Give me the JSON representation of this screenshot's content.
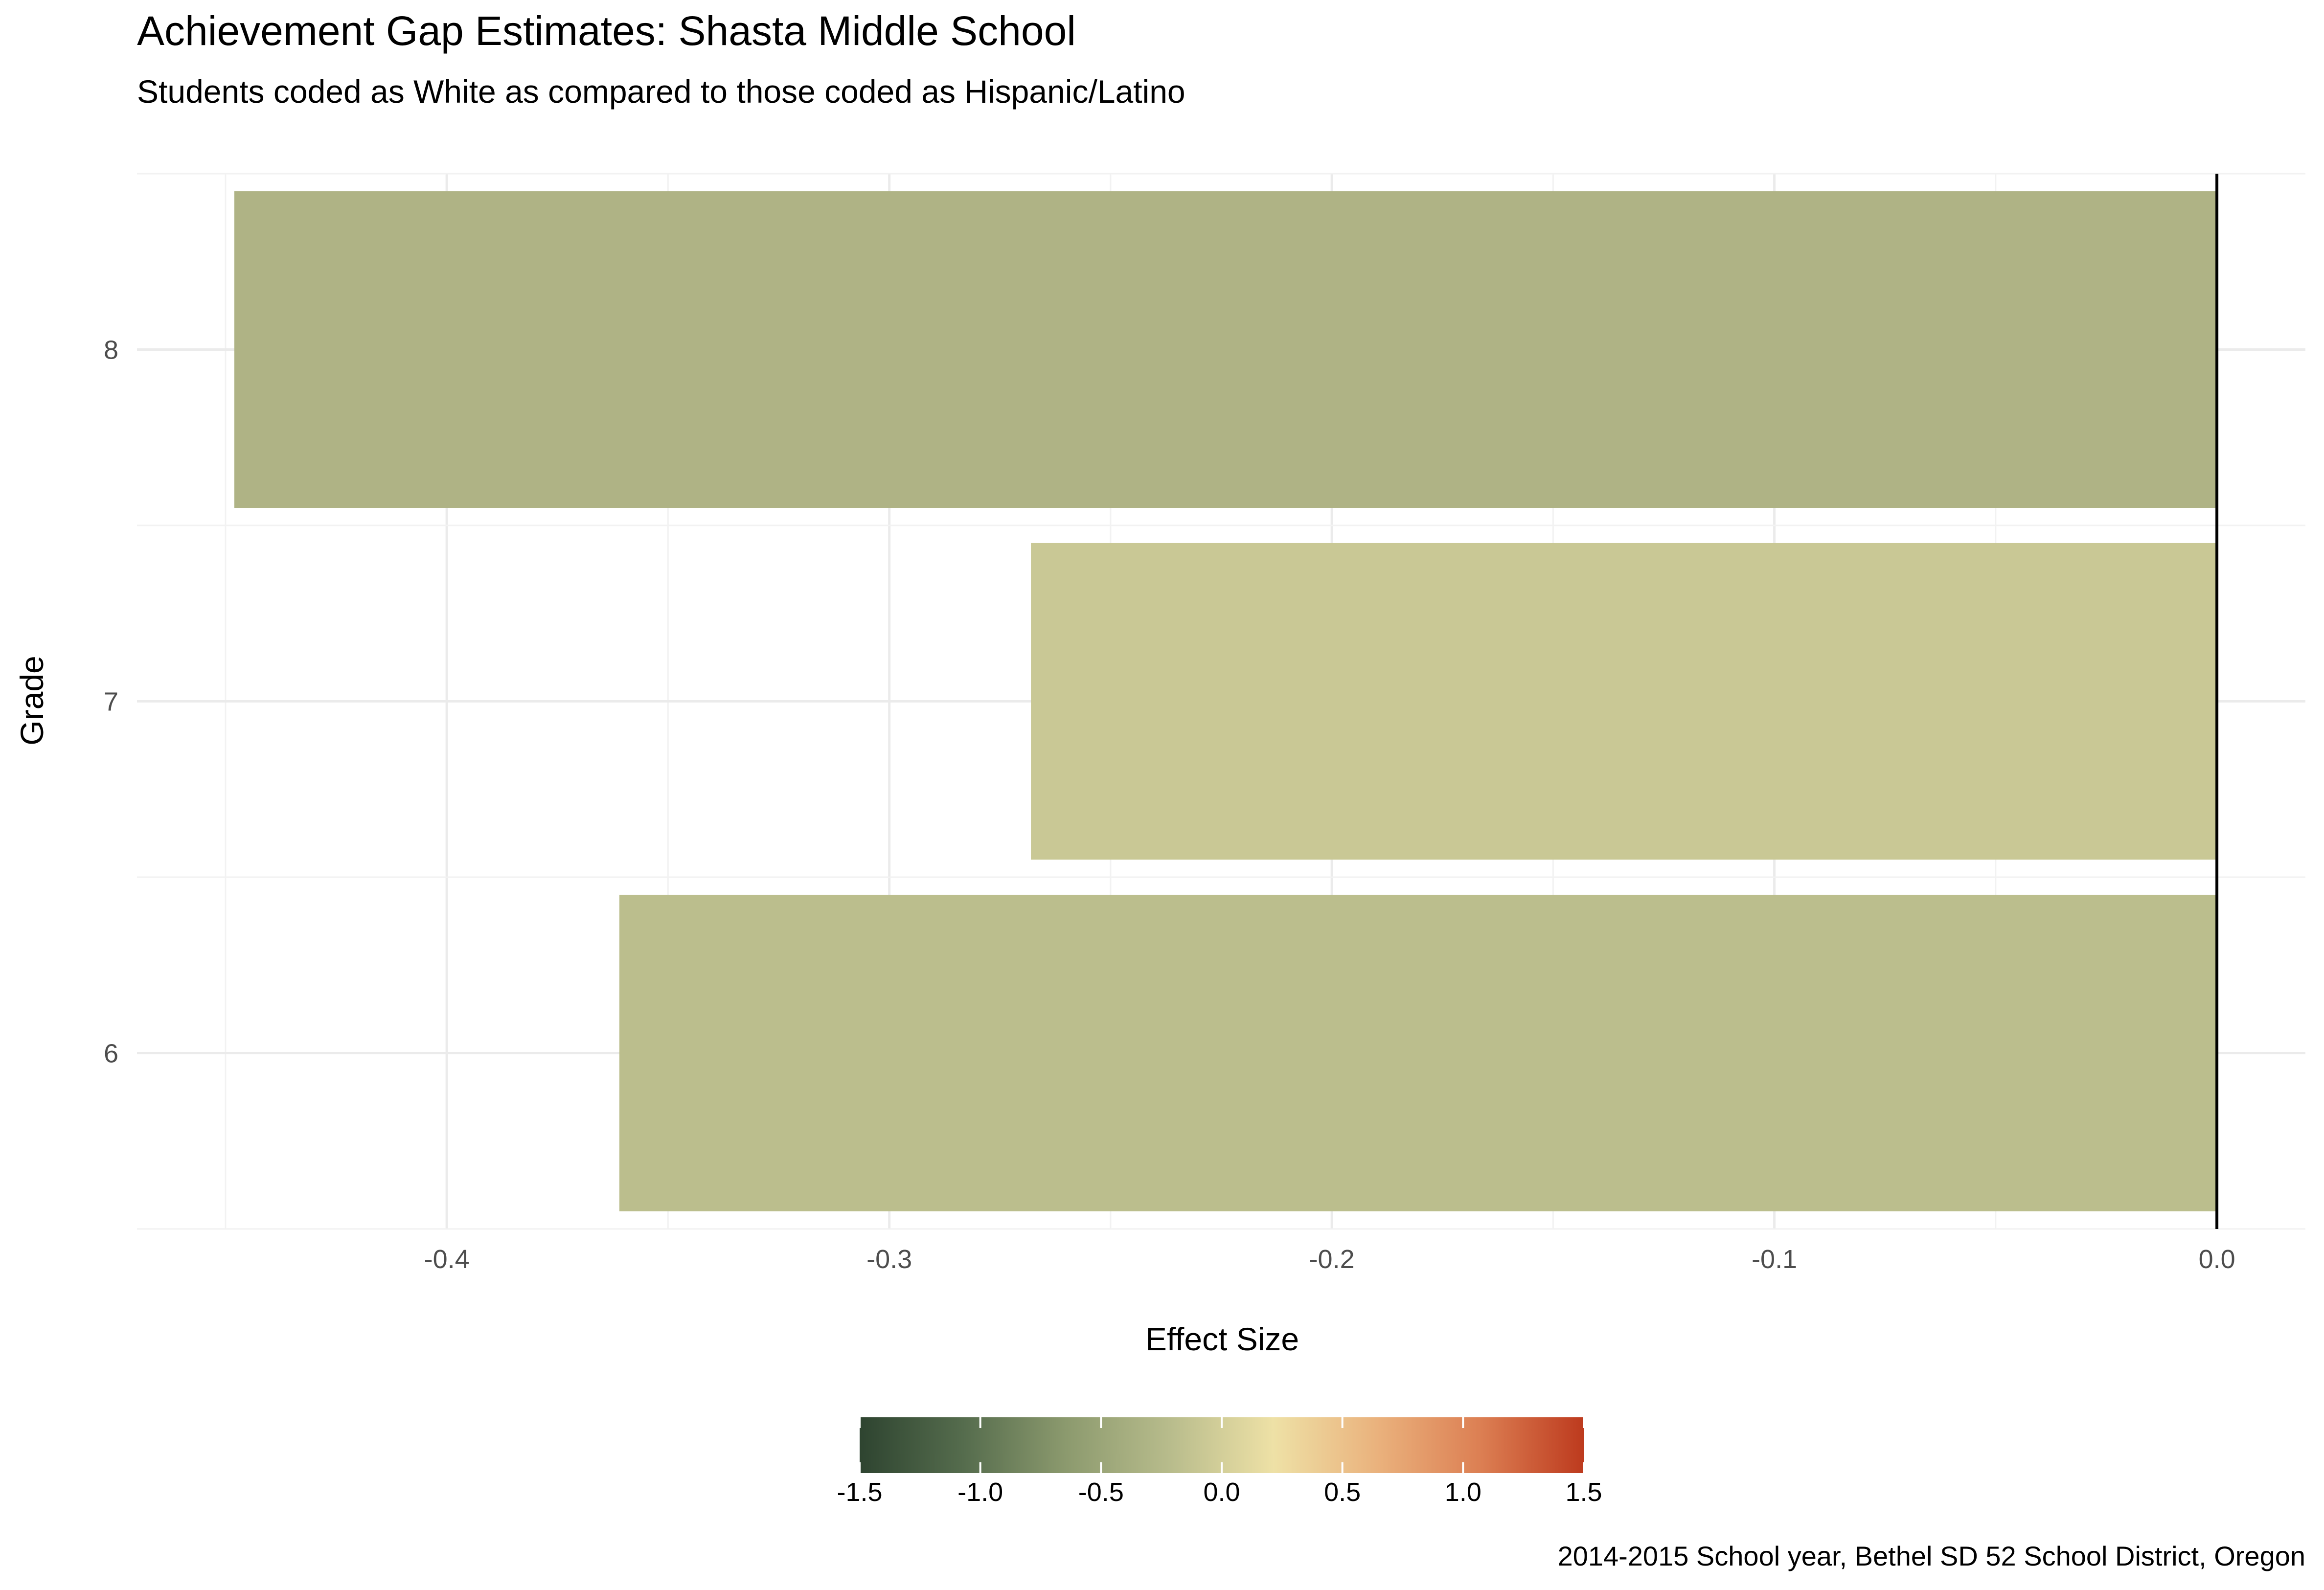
{
  "chart_data": {
    "type": "bar",
    "orientation": "horizontal",
    "title": "Achievement Gap Estimates: Shasta Middle School",
    "subtitle": "Students coded as White as compared to those coded as Hispanic/Latino",
    "xlabel": "Effect Size",
    "ylabel": "Grade",
    "caption": "2014-2015 School year, Bethel SD 52 School District, Oregon",
    "categories": [
      "6",
      "7",
      "8"
    ],
    "values": [
      -0.361,
      -0.268,
      -0.448
    ],
    "bar_colors": [
      "#BBBE8D",
      "#C9C895",
      "#AFB385"
    ],
    "xlim": [
      -0.47,
      0.02
    ],
    "xticks": [
      -0.4,
      -0.3,
      -0.2,
      -0.1,
      0.0
    ],
    "xtick_labels": [
      "-0.4",
      "-0.3",
      "-0.2",
      "-0.1",
      "0.0"
    ],
    "grid": true,
    "zero_line": true,
    "legend": {
      "type": "colorbar",
      "placement": "bottom",
      "range": [
        -1.5,
        1.5
      ],
      "ticks": [
        -1.5,
        -1.0,
        -0.5,
        0.0,
        0.5,
        1.0,
        1.5
      ],
      "tick_labels": [
        "-1.5",
        "-1.0",
        "-0.5",
        "0.0",
        "0.5",
        "1.0",
        "1.5"
      ],
      "stops": [
        "#2E4430",
        "#556C4D",
        "#8C9A6E",
        "#B8BC8C",
        "#EEE1A6",
        "#EAB27D",
        "#DC7F53",
        "#BD3A1E"
      ]
    }
  }
}
